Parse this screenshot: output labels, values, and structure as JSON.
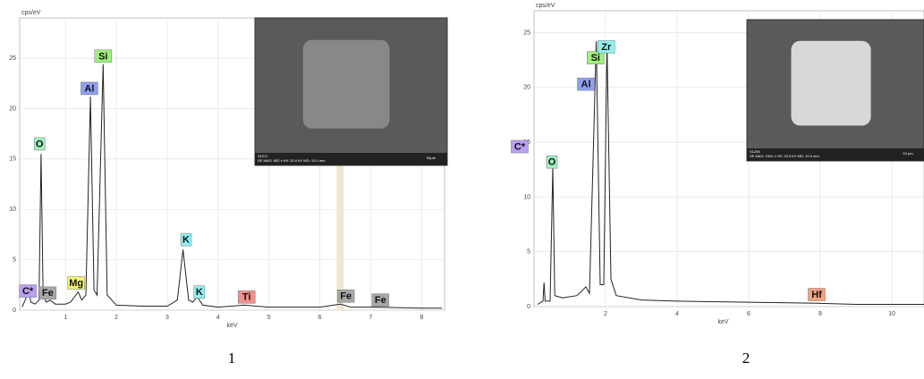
{
  "chart_data": [
    {
      "type": "line",
      "y_label": "cps/eV",
      "x_label": "keV",
      "panel_label": "1",
      "xlim": [
        0.1,
        8.45
      ],
      "ylim": [
        0,
        29
      ],
      "xticks": [
        1,
        2,
        3,
        4,
        5,
        6,
        7,
        8
      ],
      "yticks": [
        0,
        5,
        10,
        15,
        20,
        25
      ],
      "grid": true,
      "color": "#222222",
      "x": [
        0.15,
        0.25,
        0.28,
        0.32,
        0.4,
        0.48,
        0.52,
        0.56,
        0.62,
        0.7,
        0.8,
        1.0,
        1.1,
        1.25,
        1.32,
        1.4,
        1.49,
        1.56,
        1.62,
        1.74,
        1.82,
        2.0,
        2.5,
        3.0,
        3.2,
        3.31,
        3.42,
        3.5,
        3.59,
        3.7,
        4.0,
        4.51,
        5.0,
        6.0,
        6.4,
        6.6,
        7.06,
        8.0,
        8.4
      ],
      "values": [
        0.3,
        1.5,
        2.0,
        0.8,
        0.6,
        1.0,
        15.5,
        1.5,
        0.8,
        1.0,
        0.6,
        0.6,
        0.8,
        1.8,
        1.0,
        1.5,
        21.2,
        2.0,
        1.5,
        24.4,
        1.5,
        0.5,
        0.4,
        0.4,
        1.0,
        6.0,
        1.0,
        0.8,
        1.3,
        0.5,
        0.3,
        0.5,
        0.3,
        0.3,
        0.6,
        0.3,
        0.3,
        0.2,
        0.2
      ],
      "annotations": [
        {
          "text": "C*",
          "x": 0.26,
          "y": 1.9,
          "color": "#b9a0f0"
        },
        {
          "text": "Fe",
          "x": 0.65,
          "y": 1.7,
          "color": "#a8a8a8"
        },
        {
          "text": "O",
          "x": 0.49,
          "y": 16.5,
          "color": "#9ff0c0"
        },
        {
          "text": "Mg",
          "x": 1.21,
          "y": 2.7,
          "color": "#f5f56e"
        },
        {
          "text": "Al",
          "x": 1.47,
          "y": 22,
          "color": "#8fa0f0"
        },
        {
          "text": "Si",
          "x": 1.74,
          "y": 25.2,
          "color": "#9ef07a"
        },
        {
          "text": "K",
          "x": 3.37,
          "y": 7,
          "color": "#8ff0f0"
        },
        {
          "text": "K",
          "x": 3.63,
          "y": 1.8,
          "color": "#8ff0f0"
        },
        {
          "text": "Ti",
          "x": 4.56,
          "y": 1.3,
          "color": "#f08f8f"
        },
        {
          "text": "Fe",
          "x": 6.51,
          "y": 1.4,
          "color": "#a8a8a8"
        },
        {
          "text": "Fe",
          "x": 7.19,
          "y": 1.0,
          "color": "#a8a8a8"
        }
      ],
      "inset": {
        "id": "S1211",
        "caption": "SE MAG: 892 x HV: 20.0 kV WD: 10.0 mm",
        "scale": "50µm"
      }
    },
    {
      "type": "line",
      "y_label": "cps/eV",
      "x_label": "keV",
      "panel_label": "2",
      "xlim": [
        0,
        10.9
      ],
      "ylim": [
        0,
        27
      ],
      "xticks": [
        2,
        4,
        6,
        8,
        10
      ],
      "yticks": [
        0,
        5,
        10,
        15,
        20,
        25
      ],
      "grid": true,
      "color": "#222222",
      "x": [
        0.1,
        0.25,
        0.28,
        0.31,
        0.45,
        0.525,
        0.58,
        0.8,
        1.2,
        1.45,
        1.55,
        1.74,
        1.85,
        1.95,
        2.04,
        2.15,
        2.3,
        3,
        4,
        6,
        7.9,
        9,
        10.9
      ],
      "values": [
        0.2,
        0.5,
        2.2,
        0.5,
        0.5,
        12.7,
        1.0,
        0.8,
        1.0,
        1.8,
        1.2,
        24.2,
        2.0,
        2.0,
        24.0,
        2.5,
        1.0,
        0.6,
        0.5,
        0.4,
        0.3,
        0.2,
        0.2
      ],
      "annotations": [
        {
          "text": "C*",
          "x": -0.4,
          "y": 14.6,
          "color": "#b9a0f0"
        },
        {
          "text": "O",
          "x": 0.5,
          "y": 13.2,
          "color": "#9ff0c0"
        },
        {
          "text": "Al",
          "x": 1.45,
          "y": 20.3,
          "color": "#8fa0f0"
        },
        {
          "text": "Si",
          "x": 1.72,
          "y": 22.7,
          "color": "#9ef07a"
        },
        {
          "text": "Zr",
          "x": 2.02,
          "y": 23.7,
          "color": "#8ff0f0"
        },
        {
          "text": "Hf",
          "x": 7.9,
          "y": 1.1,
          "color": "#f5a080"
        }
      ],
      "inset": {
        "id": "S1206",
        "caption": "SE MAG: 2301 x HV: 20.0 kV WD: 10.0 mm",
        "scale": "10 µm"
      }
    }
  ]
}
